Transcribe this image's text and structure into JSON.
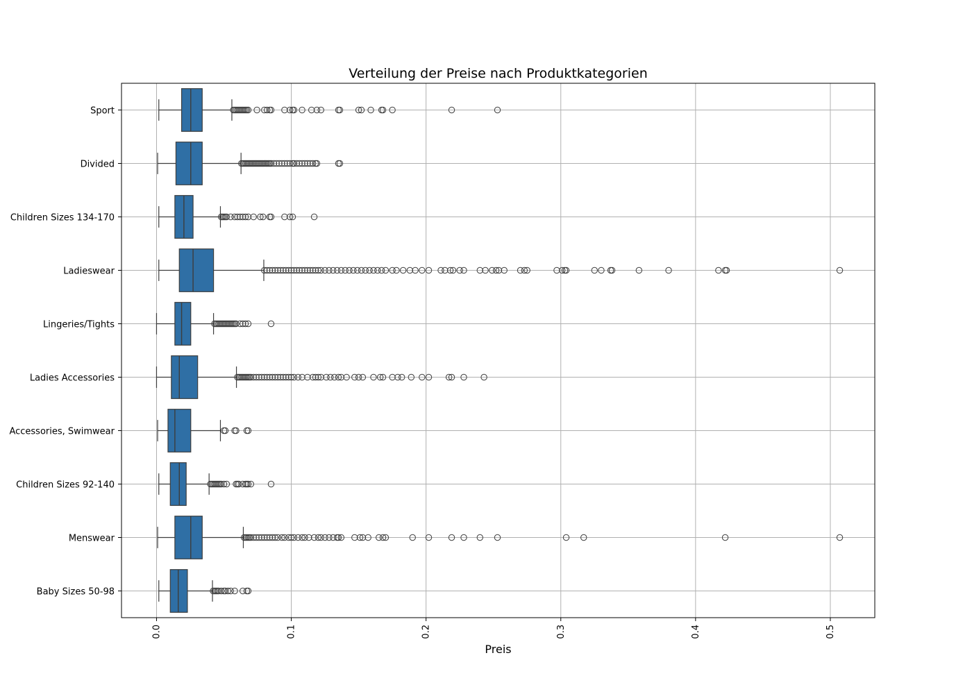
{
  "chart_data": {
    "type": "box",
    "orientation": "horizontal",
    "title": "Verteilung der Preise nach Produktkategorien",
    "xlabel": "Preis",
    "ylabel": "",
    "xlim": [
      -0.026,
      0.533
    ],
    "xticks": [
      0.0,
      0.1,
      0.2,
      0.3,
      0.4,
      0.5
    ],
    "xtick_labels": [
      "0.0",
      "0.1",
      "0.2",
      "0.3",
      "0.4",
      "0.5"
    ],
    "grid": true,
    "box_color": "#2f6fa5",
    "categories": [
      "Sport",
      "Divided",
      "Children Sizes 134-170",
      "Ladieswear",
      "Lingeries/Tights",
      "Ladies Accessories",
      "Accessories, Swimwear",
      "Children Sizes 92-140",
      "Menswear",
      "Baby Sizes 50-98"
    ],
    "boxes": [
      {
        "name": "Sport",
        "whisker_low": 0.0017,
        "q1": 0.0186,
        "median": 0.0254,
        "q3": 0.0339,
        "whisker_high": 0.0559,
        "outliers": [
          0.057,
          0.058,
          0.059,
          0.06,
          0.061,
          0.062,
          0.063,
          0.064,
          0.065,
          0.066,
          0.067,
          0.068,
          0.0745,
          0.08,
          0.082,
          0.084,
          0.085,
          0.095,
          0.099,
          0.101,
          0.102,
          0.108,
          0.115,
          0.119,
          0.122,
          0.135,
          0.136,
          0.15,
          0.152,
          0.159,
          0.167,
          0.168,
          0.175,
          0.219,
          0.253
        ]
      },
      {
        "name": "Divided",
        "whisker_low": 0.0008,
        "q1": 0.0144,
        "median": 0.0254,
        "q3": 0.0339,
        "whisker_high": 0.0627,
        "outliers": [
          0.063,
          0.064,
          0.065,
          0.066,
          0.067,
          0.068,
          0.069,
          0.07,
          0.071,
          0.072,
          0.073,
          0.074,
          0.075,
          0.076,
          0.077,
          0.078,
          0.079,
          0.08,
          0.081,
          0.082,
          0.083,
          0.084,
          0.085,
          0.087,
          0.089,
          0.091,
          0.093,
          0.095,
          0.097,
          0.099,
          0.101,
          0.102,
          0.104,
          0.106,
          0.108,
          0.11,
          0.112,
          0.114,
          0.116,
          0.118,
          0.119,
          0.135,
          0.136
        ]
      },
      {
        "name": "Children Sizes 134-170",
        "whisker_low": 0.0017,
        "q1": 0.0136,
        "median": 0.0203,
        "q3": 0.0271,
        "whisker_high": 0.0474,
        "outliers": [
          0.048,
          0.049,
          0.05,
          0.051,
          0.052,
          0.055,
          0.058,
          0.06,
          0.062,
          0.064,
          0.066,
          0.068,
          0.072,
          0.077,
          0.079,
          0.084,
          0.085,
          0.095,
          0.099,
          0.101,
          0.117
        ]
      },
      {
        "name": "Ladieswear",
        "whisker_low": 0.0017,
        "q1": 0.0169,
        "median": 0.0271,
        "q3": 0.0423,
        "whisker_high": 0.0796,
        "outliers": [
          0.08,
          0.082,
          0.084,
          0.086,
          0.088,
          0.09,
          0.092,
          0.094,
          0.096,
          0.098,
          0.1,
          0.102,
          0.104,
          0.106,
          0.108,
          0.11,
          0.112,
          0.114,
          0.116,
          0.118,
          0.12,
          0.122,
          0.125,
          0.128,
          0.131,
          0.134,
          0.137,
          0.14,
          0.143,
          0.146,
          0.149,
          0.152,
          0.155,
          0.158,
          0.161,
          0.164,
          0.167,
          0.17,
          0.175,
          0.178,
          0.183,
          0.188,
          0.192,
          0.197,
          0.202,
          0.211,
          0.214,
          0.218,
          0.22,
          0.225,
          0.228,
          0.24,
          0.244,
          0.249,
          0.252,
          0.254,
          0.258,
          0.27,
          0.273,
          0.275,
          0.297,
          0.301,
          0.303,
          0.304,
          0.325,
          0.33,
          0.337,
          0.338,
          0.358,
          0.38,
          0.417,
          0.422,
          0.423,
          0.507
        ]
      },
      {
        "name": "Lingeries/Tights",
        "whisker_low": 0.0,
        "q1": 0.0136,
        "median": 0.0186,
        "q3": 0.0254,
        "whisker_high": 0.0423,
        "outliers": [
          0.043,
          0.044,
          0.045,
          0.046,
          0.047,
          0.048,
          0.049,
          0.05,
          0.051,
          0.052,
          0.053,
          0.054,
          0.055,
          0.056,
          0.057,
          0.058,
          0.059,
          0.062,
          0.064,
          0.066,
          0.068,
          0.085
        ]
      },
      {
        "name": "Ladies Accessories",
        "whisker_low": 0.0,
        "q1": 0.011,
        "median": 0.0169,
        "q3": 0.0305,
        "whisker_high": 0.0593,
        "outliers": [
          0.06,
          0.061,
          0.062,
          0.063,
          0.064,
          0.065,
          0.066,
          0.067,
          0.068,
          0.069,
          0.07,
          0.072,
          0.074,
          0.076,
          0.078,
          0.08,
          0.082,
          0.084,
          0.086,
          0.088,
          0.09,
          0.092,
          0.094,
          0.096,
          0.098,
          0.1,
          0.102,
          0.105,
          0.108,
          0.112,
          0.116,
          0.118,
          0.12,
          0.122,
          0.126,
          0.129,
          0.132,
          0.135,
          0.137,
          0.141,
          0.147,
          0.15,
          0.153,
          0.161,
          0.166,
          0.168,
          0.175,
          0.179,
          0.182,
          0.189,
          0.197,
          0.202,
          0.217,
          0.219,
          0.228,
          0.243
        ]
      },
      {
        "name": "Accessories, Swimwear",
        "whisker_low": 0.0008,
        "q1": 0.0085,
        "median": 0.0136,
        "q3": 0.0254,
        "whisker_high": 0.0474,
        "outliers": [
          0.05,
          0.051,
          0.058,
          0.059,
          0.067,
          0.068
        ]
      },
      {
        "name": "Children Sizes 92-140",
        "whisker_low": 0.0017,
        "q1": 0.0102,
        "median": 0.0169,
        "q3": 0.022,
        "whisker_high": 0.039,
        "outliers": [
          0.04,
          0.041,
          0.042,
          0.043,
          0.044,
          0.045,
          0.046,
          0.047,
          0.048,
          0.05,
          0.052,
          0.059,
          0.06,
          0.061,
          0.064,
          0.066,
          0.067,
          0.068,
          0.07,
          0.085
        ]
      },
      {
        "name": "Menswear",
        "whisker_low": 0.0008,
        "q1": 0.0136,
        "median": 0.0254,
        "q3": 0.0339,
        "whisker_high": 0.0644,
        "outliers": [
          0.065,
          0.066,
          0.067,
          0.068,
          0.069,
          0.07,
          0.072,
          0.074,
          0.076,
          0.078,
          0.08,
          0.082,
          0.084,
          0.086,
          0.088,
          0.09,
          0.093,
          0.095,
          0.098,
          0.1,
          0.102,
          0.105,
          0.108,
          0.11,
          0.113,
          0.117,
          0.12,
          0.122,
          0.125,
          0.128,
          0.131,
          0.134,
          0.135,
          0.137,
          0.147,
          0.151,
          0.153,
          0.157,
          0.165,
          0.168,
          0.17,
          0.19,
          0.202,
          0.219,
          0.228,
          0.24,
          0.253,
          0.304,
          0.317,
          0.422,
          0.507
        ]
      },
      {
        "name": "Baby Sizes 50-98",
        "whisker_low": 0.0017,
        "q1": 0.0102,
        "median": 0.0161,
        "q3": 0.0229,
        "whisker_high": 0.0415,
        "outliers": [
          0.042,
          0.043,
          0.044,
          0.045,
          0.046,
          0.048,
          0.05,
          0.051,
          0.053,
          0.055,
          0.058,
          0.064,
          0.067,
          0.068
        ]
      }
    ]
  }
}
